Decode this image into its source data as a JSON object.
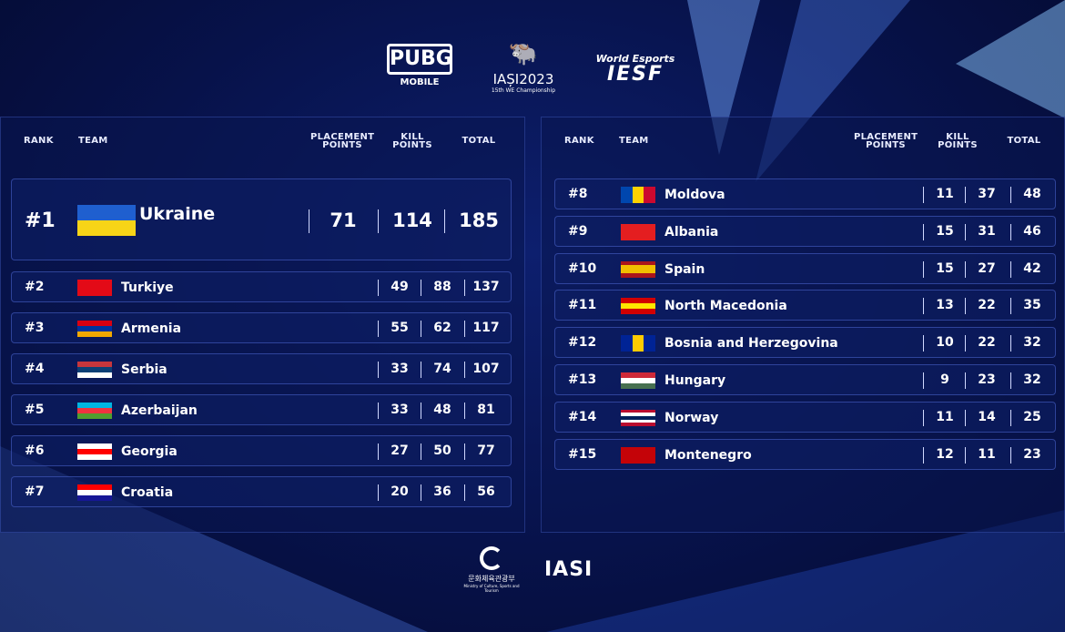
{
  "logos": {
    "pubg": "PUBG",
    "pubg_sub": "MOBILE",
    "iasi": "IAȘI2023",
    "iasi_sub": "15th WE Championship",
    "iesf_top": "World Esports",
    "iesf": "IESF"
  },
  "headers": {
    "rank": "RANK",
    "team": "TEAM",
    "placement": "PLACEMENT POINTS",
    "kill": "KILL POINTS",
    "total": "TOTAL"
  },
  "left": [
    {
      "rank": "#1",
      "team": "Ukraine",
      "placement": "71",
      "kill": "114",
      "total": "185",
      "flag": {
        "dir": "col",
        "colors": [
          "#1f5fcf",
          "#f7d417"
        ]
      }
    },
    {
      "rank": "#2",
      "team": "Turkiye",
      "placement": "49",
      "kill": "88",
      "total": "137",
      "flag": {
        "dir": "col",
        "colors": [
          "#e30a17"
        ]
      }
    },
    {
      "rank": "#3",
      "team": "Armenia",
      "placement": "55",
      "kill": "62",
      "total": "117",
      "flag": {
        "dir": "col",
        "colors": [
          "#d90012",
          "#0033a0",
          "#f2a800"
        ]
      }
    },
    {
      "rank": "#4",
      "team": "Serbia",
      "placement": "33",
      "kill": "74",
      "total": "107",
      "flag": {
        "dir": "col",
        "colors": [
          "#c6363c",
          "#0c4076",
          "#ffffff"
        ]
      }
    },
    {
      "rank": "#5",
      "team": "Azerbaijan",
      "placement": "33",
      "kill": "48",
      "total": "81",
      "flag": {
        "dir": "col",
        "colors": [
          "#00b5e2",
          "#ef3340",
          "#509e2f"
        ]
      }
    },
    {
      "rank": "#6",
      "team": "Georgia",
      "placement": "27",
      "kill": "50",
      "total": "77",
      "flag": {
        "dir": "col",
        "colors": [
          "#ffffff",
          "#ff0000",
          "#ffffff"
        ]
      }
    },
    {
      "rank": "#7",
      "team": "Croatia",
      "placement": "20",
      "kill": "36",
      "total": "56",
      "flag": {
        "dir": "col",
        "colors": [
          "#ff0000",
          "#ffffff",
          "#171796"
        ]
      }
    }
  ],
  "right": [
    {
      "rank": "#8",
      "team": "Moldova",
      "placement": "11",
      "kill": "37",
      "total": "48",
      "flag": {
        "dir": "row",
        "colors": [
          "#0046ae",
          "#ffd200",
          "#cc092f"
        ]
      }
    },
    {
      "rank": "#9",
      "team": "Albania",
      "placement": "15",
      "kill": "31",
      "total": "46",
      "flag": {
        "dir": "col",
        "colors": [
          "#e41e20"
        ]
      }
    },
    {
      "rank": "#10",
      "team": "Spain",
      "placement": "15",
      "kill": "27",
      "total": "42",
      "flag": {
        "dir": "col",
        "colors": [
          "#aa151b",
          "#f1bf00",
          "#f1bf00",
          "#aa151b"
        ]
      }
    },
    {
      "rank": "#11",
      "team": "North Macedonia",
      "placement": "13",
      "kill": "22",
      "total": "35",
      "flag": {
        "dir": "col",
        "colors": [
          "#d20000",
          "#ffe600",
          "#d20000"
        ]
      }
    },
    {
      "rank": "#12",
      "team": "Bosnia and Herzegovina",
      "placement": "10",
      "kill": "22",
      "total": "32",
      "flag": {
        "dir": "row",
        "colors": [
          "#002395",
          "#fecb00",
          "#002395"
        ]
      }
    },
    {
      "rank": "#13",
      "team": "Hungary",
      "placement": "9",
      "kill": "23",
      "total": "32",
      "flag": {
        "dir": "col",
        "colors": [
          "#ce2939",
          "#ffffff",
          "#477050"
        ]
      }
    },
    {
      "rank": "#14",
      "team": "Norway",
      "placement": "11",
      "kill": "14",
      "total": "25",
      "flag": {
        "dir": "col",
        "colors": [
          "#ba0c2f",
          "#ffffff",
          "#00205b",
          "#ffffff",
          "#ba0c2f"
        ]
      }
    },
    {
      "rank": "#15",
      "team": "Montenegro",
      "placement": "12",
      "kill": "11",
      "total": "23",
      "flag": {
        "dir": "col",
        "colors": [
          "#c40308"
        ]
      }
    }
  ],
  "footer": {
    "ministry_ko": "문화체육관광부",
    "ministry_en": "Ministry of Culture, Sports and Tourism",
    "iasi": "IASI"
  }
}
